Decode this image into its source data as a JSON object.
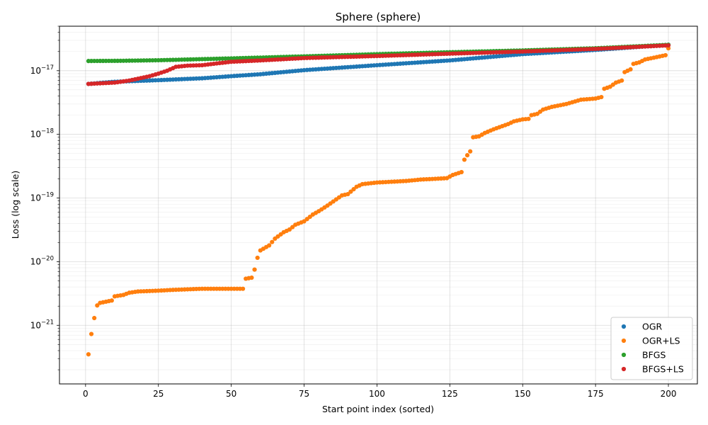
{
  "chart_data": {
    "type": "scatter",
    "title": "Sphere (sphere)",
    "xlabel": "Start point index (sorted)",
    "ylabel": "Loss (log scale)",
    "yscale": "log",
    "xlim": [
      -8.95,
      209.95
    ],
    "ylim": [
      1.2e-22,
      5e-17
    ],
    "xticks": [
      0,
      25,
      50,
      75,
      100,
      125,
      150,
      175,
      200
    ],
    "xtick_labels": [
      "0",
      "25",
      "50",
      "75",
      "100",
      "125",
      "150",
      "175",
      "200"
    ],
    "yticks": [
      1e-21,
      1e-20,
      1e-19,
      1e-18,
      1e-17
    ],
    "ytick_labels": [
      {
        "base": "10",
        "exp": "−21"
      },
      {
        "base": "10",
        "exp": "−20"
      },
      {
        "base": "10",
        "exp": "−19"
      },
      {
        "base": "10",
        "exp": "−18"
      },
      {
        "base": "10",
        "exp": "−17"
      }
    ],
    "grid": true,
    "legend_position": "lower-right",
    "n_points": 200,
    "series": [
      {
        "name": "OGR",
        "color": "#1f77b4",
        "curve_points": [
          [
            1,
            6.2e-18
          ],
          [
            10,
            6.7e-18
          ],
          [
            25,
            7.1e-18
          ],
          [
            40,
            7.6e-18
          ],
          [
            50,
            8.2e-18
          ],
          [
            60,
            8.8e-18
          ],
          [
            75,
            1.02e-17
          ],
          [
            100,
            1.22e-17
          ],
          [
            125,
            1.45e-17
          ],
          [
            150,
            1.82e-17
          ],
          [
            175,
            2.12e-17
          ],
          [
            200,
            2.55e-17
          ]
        ]
      },
      {
        "name": "OGR+LS",
        "color": "#ff7f0e",
        "curve_points": [
          [
            1,
            3.5e-22
          ],
          [
            2,
            7.3e-22
          ],
          [
            3,
            1.3e-21
          ],
          [
            4,
            2.05e-21
          ],
          [
            5,
            2.25e-21
          ],
          [
            9,
            2.45e-21
          ],
          [
            10,
            2.85e-21
          ],
          [
            13,
            3e-21
          ],
          [
            15,
            3.25e-21
          ],
          [
            18,
            3.4e-21
          ],
          [
            25,
            3.5e-21
          ],
          [
            30,
            3.6e-21
          ],
          [
            40,
            3.75e-21
          ],
          [
            54,
            3.75e-21
          ],
          [
            55,
            5.4e-21
          ],
          [
            57,
            5.6e-21
          ],
          [
            58,
            7.5e-21
          ],
          [
            59,
            1.15e-20
          ],
          [
            60,
            1.5e-20
          ],
          [
            63,
            1.8e-20
          ],
          [
            65,
            2.3e-20
          ],
          [
            68,
            2.9e-20
          ],
          [
            70,
            3.2e-20
          ],
          [
            72,
            3.8e-20
          ],
          [
            75,
            4.3e-20
          ],
          [
            78,
            5.5e-20
          ],
          [
            80,
            6.2e-20
          ],
          [
            83,
            7.6e-20
          ],
          [
            86,
            9.5e-20
          ],
          [
            88,
            1.1e-19
          ],
          [
            90,
            1.15e-19
          ],
          [
            93,
            1.5e-19
          ],
          [
            95,
            1.65e-19
          ],
          [
            100,
            1.75e-19
          ],
          [
            110,
            1.85e-19
          ],
          [
            115,
            1.95e-19
          ],
          [
            120,
            2e-19
          ],
          [
            124,
            2.05e-19
          ],
          [
            126,
            2.3e-19
          ],
          [
            129,
            2.55e-19
          ],
          [
            130,
            4e-19
          ],
          [
            131,
            4.7e-19
          ],
          [
            132,
            5.4e-19
          ],
          [
            133,
            9e-19
          ],
          [
            135,
            9.3e-19
          ],
          [
            137,
            1.05e-18
          ],
          [
            140,
            1.2e-18
          ],
          [
            145,
            1.45e-18
          ],
          [
            147,
            1.6e-18
          ],
          [
            150,
            1.72e-18
          ],
          [
            152,
            1.75e-18
          ],
          [
            153,
            2e-18
          ],
          [
            155,
            2.1e-18
          ],
          [
            157,
            2.45e-18
          ],
          [
            160,
            2.7e-18
          ],
          [
            165,
            3e-18
          ],
          [
            170,
            3.5e-18
          ],
          [
            175,
            3.65e-18
          ],
          [
            177,
            3.85e-18
          ],
          [
            178,
            5.2e-18
          ],
          [
            180,
            5.6e-18
          ],
          [
            182,
            6.5e-18
          ],
          [
            184,
            7e-18
          ],
          [
            185,
            9.5e-18
          ],
          [
            187,
            1.05e-17
          ],
          [
            188,
            1.28e-17
          ],
          [
            190,
            1.35e-17
          ],
          [
            192,
            1.5e-17
          ],
          [
            195,
            1.6e-17
          ],
          [
            199,
            1.75e-17
          ],
          [
            200,
            2.25e-17
          ]
        ]
      },
      {
        "name": "BFGS",
        "color": "#2ca02c",
        "curve_points": [
          [
            1,
            1.42e-17
          ],
          [
            12,
            1.43e-17
          ],
          [
            25,
            1.46e-17
          ],
          [
            50,
            1.56e-17
          ],
          [
            75,
            1.68e-17
          ],
          [
            100,
            1.82e-17
          ],
          [
            125,
            1.95e-17
          ],
          [
            150,
            2.08e-17
          ],
          [
            175,
            2.25e-17
          ],
          [
            200,
            2.55e-17
          ]
        ]
      },
      {
        "name": "BFGS+LS",
        "color": "#d62728",
        "curve_points": [
          [
            1,
            6.2e-18
          ],
          [
            10,
            6.5e-18
          ],
          [
            15,
            7e-18
          ],
          [
            18,
            7.5e-18
          ],
          [
            22,
            8.2e-18
          ],
          [
            25,
            9e-18
          ],
          [
            28,
            1e-17
          ],
          [
            31,
            1.15e-17
          ],
          [
            35,
            1.2e-17
          ],
          [
            40,
            1.22e-17
          ],
          [
            45,
            1.3e-17
          ],
          [
            50,
            1.38e-17
          ],
          [
            60,
            1.45e-17
          ],
          [
            75,
            1.58e-17
          ],
          [
            100,
            1.7e-17
          ],
          [
            125,
            1.85e-17
          ],
          [
            150,
            2e-17
          ],
          [
            175,
            2.2e-17
          ],
          [
            200,
            2.5e-17
          ]
        ]
      }
    ]
  }
}
